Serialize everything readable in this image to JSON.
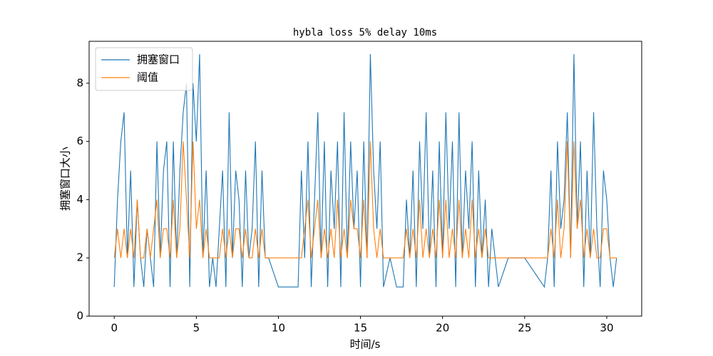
{
  "chart_data": {
    "type": "line",
    "title": "hybla loss 5% delay 10ms",
    "xlabel": "时间/s",
    "ylabel": "拥塞窗口大小",
    "x": [
      0,
      0.2,
      0.4,
      0.6,
      0.8,
      1,
      1.2,
      1.4,
      1.6,
      1.8,
      2,
      2.2,
      2.4,
      2.6,
      2.8,
      3,
      3.2,
      3.4,
      3.6,
      3.8,
      4,
      4.2,
      4.4,
      4.6,
      4.8,
      5,
      5.2,
      5.4,
      5.6,
      5.8,
      6,
      6.2,
      6.4,
      6.6,
      6.8,
      7,
      7.2,
      7.4,
      7.6,
      7.8,
      8,
      8.2,
      8.4,
      8.6,
      8.8,
      9,
      9.2,
      9.4,
      10,
      10.6,
      11.2,
      11.4,
      11.6,
      11.8,
      12,
      12.2,
      12.4,
      12.6,
      12.8,
      13,
      13.2,
      13.4,
      13.6,
      13.8,
      14,
      14.2,
      14.4,
      14.6,
      14.8,
      15,
      15.2,
      15.4,
      15.6,
      15.8,
      16,
      16.2,
      16.4,
      16.8,
      17.2,
      17.6,
      17.8,
      18,
      18.2,
      18.4,
      18.6,
      18.8,
      19,
      19.2,
      19.4,
      19.6,
      19.8,
      20,
      20.2,
      20.4,
      20.6,
      20.8,
      21,
      21.2,
      21.4,
      21.6,
      21.8,
      22,
      22.2,
      22.4,
      22.6,
      22.8,
      23,
      23.2,
      23.4,
      24,
      25,
      26.2,
      26.4,
      26.6,
      26.8,
      27,
      27.2,
      27.4,
      27.6,
      27.8,
      28,
      28.2,
      28.4,
      28.6,
      28.8,
      29,
      29.2,
      29.4,
      29.6,
      29.8,
      30,
      30.2,
      30.4,
      30.6
    ],
    "series": [
      {
        "name": "拥塞窗口",
        "color": "#1f77b4",
        "values": [
          1,
          4,
          6,
          7,
          2,
          5,
          1,
          4,
          2,
          1,
          3,
          2,
          1,
          6,
          2,
          5,
          6,
          1,
          6,
          2,
          5,
          7,
          8,
          1,
          8,
          6,
          9,
          2,
          5,
          1,
          2,
          1,
          3,
          5,
          1,
          7,
          2,
          5,
          4,
          1,
          5,
          2,
          3,
          6,
          1,
          5,
          2,
          2,
          1,
          1,
          1,
          5,
          2,
          6,
          1,
          4,
          7,
          2,
          6,
          1,
          5,
          3,
          6,
          1,
          7,
          2,
          6,
          3,
          5,
          1,
          6,
          2,
          9,
          5,
          3,
          6,
          1,
          2,
          1,
          1,
          4,
          2,
          5,
          1,
          6,
          3,
          7,
          2,
          5,
          1,
          6,
          2,
          7,
          3,
          6,
          1,
          7,
          2,
          5,
          3,
          6,
          1,
          5,
          2,
          4,
          1,
          3,
          2,
          1,
          2,
          2,
          1,
          2,
          5,
          1,
          6,
          3,
          4,
          7,
          2,
          9,
          3,
          6,
          1,
          5,
          2,
          7,
          3,
          1,
          5,
          4,
          2,
          1,
          2
        ]
      },
      {
        "name": "阈值",
        "color": "#ff7f0e",
        "values": [
          2,
          3,
          2,
          3,
          2,
          3,
          2,
          4,
          2,
          2,
          3,
          2,
          3,
          4,
          2,
          3,
          3,
          2,
          4,
          2,
          3,
          6,
          4,
          2,
          6,
          3,
          4,
          2,
          3,
          2,
          2,
          2,
          2,
          3,
          2,
          3,
          2,
          3,
          3,
          2,
          3,
          2,
          2,
          3,
          2,
          3,
          2,
          2,
          2,
          2,
          2,
          2,
          3,
          4,
          2,
          3,
          4,
          2,
          3,
          2,
          3,
          2,
          4,
          2,
          3,
          2,
          4,
          3,
          3,
          2,
          4,
          2,
          6,
          3,
          2,
          3,
          2,
          2,
          2,
          2,
          3,
          2,
          3,
          2,
          4,
          2,
          3,
          2,
          3,
          2,
          4,
          2,
          4,
          2,
          3,
          2,
          4,
          2,
          3,
          2,
          4,
          2,
          3,
          2,
          3,
          2,
          2,
          2,
          2,
          2,
          2,
          2,
          2,
          3,
          2,
          4,
          2,
          3,
          6,
          2,
          6,
          3,
          4,
          2,
          3,
          2,
          3,
          2,
          2,
          3,
          3,
          2,
          2,
          2
        ]
      }
    ],
    "xlim": [
      -1.53,
      32.13
    ],
    "ylim": [
      0,
      9.44
    ],
    "xticks": [
      0,
      5,
      10,
      15,
      20,
      25,
      30
    ],
    "yticks": [
      0,
      2,
      4,
      6,
      8
    ],
    "legend": "upper left"
  }
}
